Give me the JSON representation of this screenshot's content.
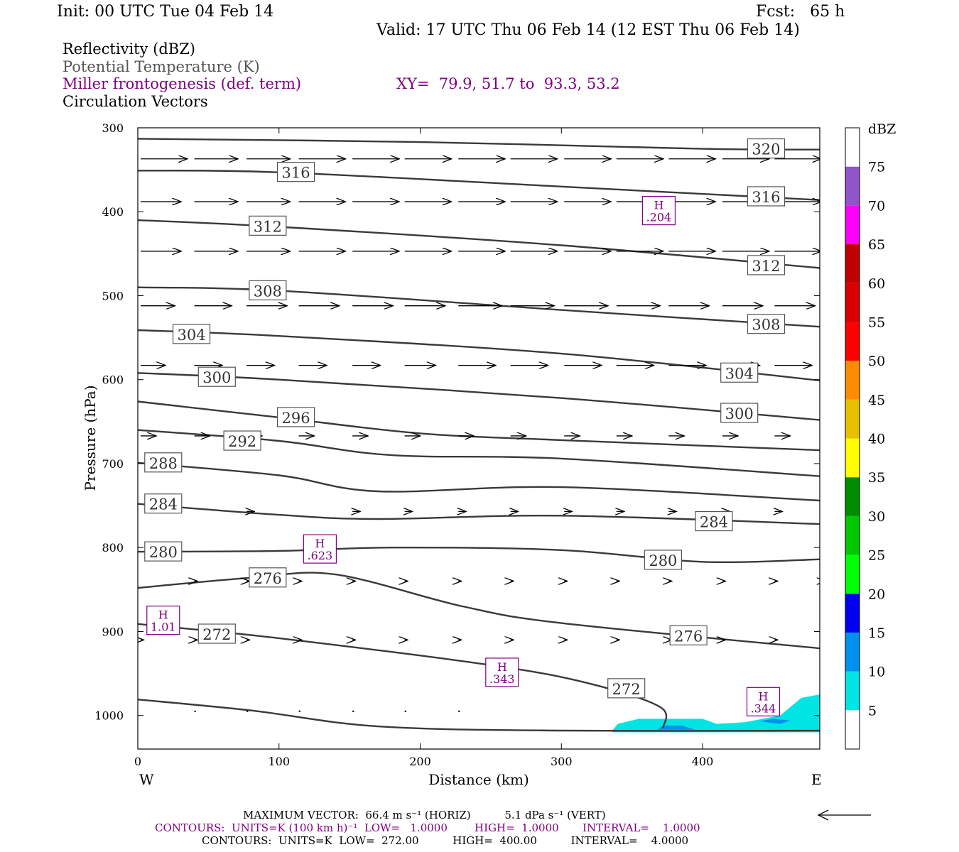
{
  "header": {
    "init": "Init: 00 UTC Tue 04 Feb 14",
    "fcst": "Fcst:   65 h",
    "valid": "Valid: 17 UTC Thu 06 Feb 14 (12 EST Thu 06 Feb 14)"
  },
  "fields": {
    "reflectivity": "Reflectivity (dBZ)",
    "theta": "Potential Temperature (K)",
    "frontogenesis": "Miller frontogenesis (def. term)",
    "xy": "XY=  79.9, 51.7 to  93.3, 53.2",
    "vectors": "Circulation Vectors"
  },
  "colors": {
    "theta_line": "#3a3a3a",
    "frontogenesis": "#800080",
    "dbz_scale": [
      "#ffffff",
      "#00e4e4",
      "#0090ee",
      "#0000f0",
      "#00ff00",
      "#00c800",
      "#008c00",
      "#ffff00",
      "#e6c000",
      "#ff8c00",
      "#ff0000",
      "#d80000",
      "#c00000",
      "#ff00ff",
      "#9055c8",
      "#ffffff"
    ]
  },
  "chart_data": {
    "type": "cross-section",
    "xlabel": "Distance (km)",
    "ylabel": "Pressure (hPa)",
    "xlim": [
      0,
      483
    ],
    "ylim": [
      1040,
      300
    ],
    "x_ticks": [
      0,
      100,
      200,
      300,
      400
    ],
    "y_ticks": [
      300,
      400,
      500,
      600,
      700,
      800,
      900,
      1000
    ],
    "x_end_labels": {
      "left": "W",
      "right": "E"
    },
    "theta_contours": [
      {
        "value": "320",
        "points": [
          [
            0,
            313
          ],
          [
            200,
            317
          ],
          [
            400,
            325
          ],
          [
            483,
            326
          ]
        ],
        "labels": [
          [
            445,
            325
          ]
        ]
      },
      {
        "value": "316",
        "points": [
          [
            0,
            351
          ],
          [
            100,
            353
          ],
          [
            300,
            370
          ],
          [
            483,
            386
          ]
        ],
        "labels": [
          [
            112,
            353
          ],
          [
            445,
            382
          ]
        ]
      },
      {
        "value": "312",
        "points": [
          [
            0,
            410
          ],
          [
            100,
            418
          ],
          [
            300,
            440
          ],
          [
            483,
            467
          ]
        ],
        "labels": [
          [
            92,
            417
          ],
          [
            445,
            464
          ]
        ]
      },
      {
        "value": "308",
        "points": [
          [
            0,
            490
          ],
          [
            100,
            494
          ],
          [
            300,
            517
          ],
          [
            483,
            537
          ]
        ],
        "labels": [
          [
            92,
            494
          ],
          [
            445,
            534
          ]
        ]
      },
      {
        "value": "304",
        "points": [
          [
            0,
            541
          ],
          [
            100,
            548
          ],
          [
            300,
            569
          ],
          [
            483,
            601
          ]
        ],
        "labels": [
          [
            38,
            546
          ],
          [
            426,
            592
          ]
        ]
      },
      {
        "value": "300",
        "points": [
          [
            0,
            592
          ],
          [
            100,
            600
          ],
          [
            300,
            622
          ],
          [
            483,
            648
          ]
        ],
        "labels": [
          [
            56,
            597
          ],
          [
            426,
            640
          ]
        ]
      },
      {
        "value": "296",
        "points": [
          [
            0,
            626
          ],
          [
            100,
            645
          ],
          [
            200,
            664
          ],
          [
            300,
            672
          ],
          [
            483,
            684
          ]
        ],
        "labels": [
          [
            112,
            645
          ]
        ]
      },
      {
        "value": "292",
        "points": [
          [
            0,
            660
          ],
          [
            100,
            673
          ],
          [
            180,
            690
          ],
          [
            300,
            694
          ],
          [
            483,
            715
          ]
        ],
        "labels": [
          [
            74,
            673
          ]
        ]
      },
      {
        "value": "288",
        "points": [
          [
            0,
            699
          ],
          [
            100,
            714
          ],
          [
            170,
            733
          ],
          [
            300,
            728
          ],
          [
            483,
            744
          ]
        ],
        "labels": [
          [
            18,
            699
          ]
        ]
      },
      {
        "value": "284",
        "points": [
          [
            0,
            748
          ],
          [
            100,
            761
          ],
          [
            170,
            766
          ],
          [
            300,
            762
          ],
          [
            483,
            772
          ]
        ],
        "labels": [
          [
            18,
            748
          ],
          [
            408,
            769
          ]
        ]
      },
      {
        "value": "280",
        "points": [
          [
            0,
            805
          ],
          [
            100,
            804
          ],
          [
            180,
            800
          ],
          [
            300,
            803
          ],
          [
            400,
            817
          ],
          [
            483,
            814
          ]
        ],
        "labels": [
          [
            18,
            805
          ],
          [
            372,
            815
          ]
        ]
      },
      {
        "value": "276",
        "points": [
          [
            0,
            848
          ],
          [
            80,
            836
          ],
          [
            140,
            832
          ],
          [
            230,
            870
          ],
          [
            300,
            890
          ],
          [
            483,
            920
          ]
        ],
        "labels": [
          [
            92,
            836
          ],
          [
            390,
            905
          ]
        ]
      },
      {
        "value": "272",
        "points": [
          [
            0,
            891
          ],
          [
            100,
            908
          ],
          [
            250,
            940
          ],
          [
            320,
            962
          ],
          [
            370,
            990
          ],
          [
            372,
            1015
          ]
        ],
        "labels": [
          [
            56,
            903
          ],
          [
            346,
            968
          ]
        ]
      },
      {
        "value": "",
        "points": [
          [
            0,
            981
          ],
          [
            80,
            994
          ],
          [
            170,
            1013
          ],
          [
            300,
            1018
          ],
          [
            483,
            1018
          ]
        ],
        "labels": []
      }
    ],
    "frontogenesis_highs": [
      {
        "label": "H",
        "value": ".204",
        "x": 369,
        "p": 402
      },
      {
        "label": "H",
        "value": ".623",
        "x": 129,
        "p": 805
      },
      {
        "label": "H",
        "value": "1.01",
        "x": 18,
        "p": 890
      },
      {
        "label": "H",
        "value": ".343",
        "x": 258,
        "p": 952
      },
      {
        "label": "H",
        "value": ".344",
        "x": 443,
        "p": 987
      }
    ],
    "reflectivity_areas": [
      {
        "dbz": 5,
        "points": [
          [
            336,
            1018
          ],
          [
            340,
            1010
          ],
          [
            355,
            1004
          ],
          [
            400,
            1004
          ],
          [
            410,
            1010
          ],
          [
            430,
            1008
          ],
          [
            455,
            1000
          ],
          [
            470,
            979
          ],
          [
            483,
            975
          ],
          [
            483,
            1020
          ],
          [
            336,
            1020
          ]
        ]
      },
      {
        "dbz": 10,
        "points": [
          [
            368,
            1017
          ],
          [
            372,
            1012
          ],
          [
            385,
            1012
          ],
          [
            395,
            1017
          ]
        ]
      },
      {
        "dbz": 10,
        "points": [
          [
            440,
            1007
          ],
          [
            450,
            1004
          ],
          [
            462,
            1006
          ],
          [
            455,
            1010
          ]
        ]
      }
    ],
    "vector_rows": [
      {
        "p": 337,
        "x": [
          0,
          38,
          75,
          112,
          150,
          187,
          225,
          262,
          300,
          337,
          374,
          412,
          449,
          483
        ],
        "u": [
          30,
          28,
          28,
          30,
          30,
          30,
          30,
          30,
          30,
          30,
          30,
          30,
          30,
          28
        ]
      },
      {
        "p": 388,
        "x": [
          0,
          38,
          75,
          112,
          150,
          187,
          225,
          262,
          300,
          337,
          374,
          412,
          449
        ],
        "u": [
          26,
          28,
          28,
          30,
          30,
          30,
          30,
          30,
          30,
          30,
          30,
          30,
          30
        ]
      },
      {
        "p": 447,
        "x": [
          0,
          38,
          75,
          112,
          150,
          187,
          225,
          262,
          300,
          337,
          374,
          412,
          449
        ],
        "u": [
          26,
          28,
          28,
          30,
          30,
          30,
          30,
          30,
          30,
          30,
          30,
          30,
          30
        ]
      },
      {
        "p": 512,
        "x": [
          0,
          38,
          75,
          112,
          150,
          187,
          225,
          262,
          300,
          337,
          374,
          412,
          449
        ],
        "u": [
          22,
          24,
          26,
          26,
          26,
          26,
          28,
          28,
          28,
          28,
          26,
          26,
          26
        ]
      },
      {
        "p": 583,
        "x": [
          0,
          38,
          75,
          112,
          150,
          187,
          225,
          262,
          300,
          337,
          374,
          412,
          449
        ],
        "u": [
          16,
          18,
          18,
          18,
          18,
          20,
          24,
          24,
          24,
          24,
          24,
          24,
          24
        ]
      },
      {
        "p": 667,
        "x": [
          0,
          38,
          75,
          112,
          150,
          187,
          225,
          262,
          300,
          337,
          374,
          412,
          449
        ],
        "u": [
          10,
          10,
          10,
          10,
          10,
          10,
          10,
          10,
          10,
          10,
          10,
          10,
          10
        ]
      },
      {
        "p": 757,
        "x": [
          75,
          150,
          187,
          225,
          262,
          300,
          337,
          374,
          412,
          449
        ],
        "u": [
          5,
          5,
          5,
          5,
          5,
          5,
          5,
          5,
          5,
          5
        ]
      },
      {
        "p": 840,
        "x": [
          38,
          75,
          112,
          150,
          187,
          225,
          262,
          300,
          337,
          374,
          412,
          449,
          483
        ],
        "u": [
          2,
          2,
          2,
          2,
          2,
          2,
          2,
          2,
          2,
          2,
          2,
          2,
          2
        ]
      },
      {
        "p": 910,
        "x": [
          0,
          38,
          75,
          112,
          150,
          187,
          225,
          262,
          300,
          337,
          374,
          412,
          449
        ],
        "u": [
          2,
          2,
          2,
          2,
          2,
          2,
          2,
          2,
          2,
          2,
          2,
          2,
          2
        ]
      },
      {
        "p": 995,
        "x": [
          38,
          75,
          112,
          150,
          187,
          225
        ],
        "u": [
          1,
          1,
          1,
          1,
          1,
          1
        ]
      }
    ],
    "colorbar": {
      "title": "dBZ",
      "ticks": [
        "5",
        "10",
        "15",
        "20",
        "25",
        "30",
        "35",
        "40",
        "45",
        "50",
        "55",
        "60",
        "65",
        "70",
        "75"
      ]
    }
  },
  "footer": {
    "max_vector": "MAXIMUM VECTOR:  66.4 m s⁻¹ (HORIZ)          5.1 dPa s⁻¹ (VERT)",
    "contours1": "CONTOURS:  UNITS=K (100 km h)⁻¹  LOW=   1.0000        HIGH=  1.0000       INTERVAL=    1.0000",
    "contours2": "CONTOURS:  UNITS=K  LOW=  272.00          HIGH=  400.00          INTERVAL=    4.0000"
  }
}
